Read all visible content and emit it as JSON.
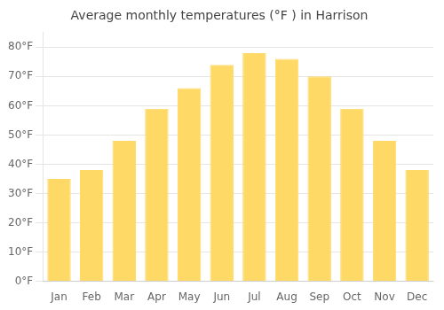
{
  "chart_data": {
    "type": "bar",
    "title": "Average monthly temperatures (°F ) in Harrison",
    "categories": [
      "Jan",
      "Feb",
      "Mar",
      "Apr",
      "May",
      "Jun",
      "Jul",
      "Aug",
      "Sep",
      "Oct",
      "Nov",
      "Dec"
    ],
    "values": [
      35,
      38,
      48,
      59,
      66,
      74,
      78,
      76,
      70,
      59,
      48,
      38
    ],
    "color": "#FFD966",
    "ylim": [
      0,
      85
    ],
    "yticks": [
      {
        "value": 0,
        "label": "0°F"
      },
      {
        "value": 10,
        "label": "10°F"
      },
      {
        "value": 20,
        "label": "20°F"
      },
      {
        "value": 30,
        "label": "30°F"
      },
      {
        "value": 40,
        "label": "40°F"
      },
      {
        "value": 50,
        "label": "50°F"
      },
      {
        "value": 60,
        "label": "60°F"
      },
      {
        "value": 70,
        "label": "70°F"
      },
      {
        "value": 80,
        "label": "80°F"
      }
    ],
    "grid": true
  }
}
